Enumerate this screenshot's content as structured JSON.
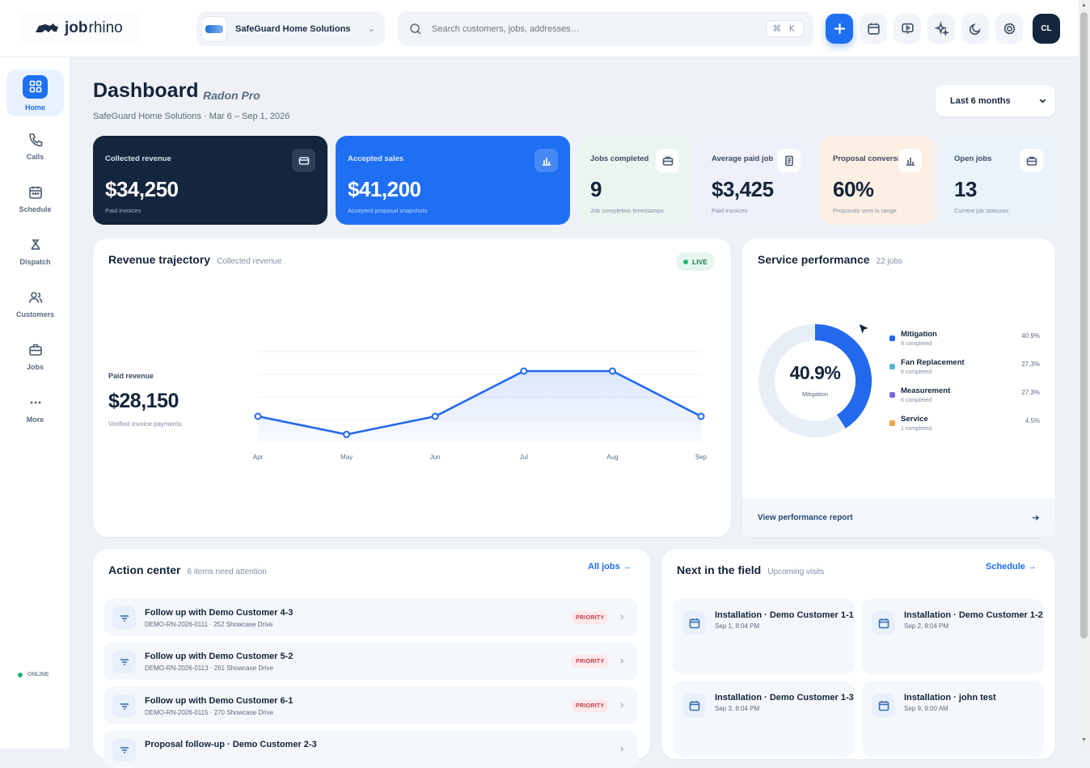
{
  "app": {
    "logo_bold": "job",
    "logo_light": "rhino"
  },
  "company_selector": {
    "name": "SafeGuard Home Solutions"
  },
  "search": {
    "placeholder": "Search customers, jobs, addresses…",
    "shortcut": "⌘ K"
  },
  "user": {
    "initials": "CL"
  },
  "sidebar": {
    "items": [
      {
        "label": "Home",
        "icon": "grid-icon"
      },
      {
        "label": "Calls",
        "icon": "phone-icon"
      },
      {
        "label": "Schedule",
        "icon": "calendar-icon"
      },
      {
        "label": "Dispatch",
        "icon": "dispatch-icon"
      },
      {
        "label": "Customers",
        "icon": "users-icon"
      },
      {
        "label": "Jobs",
        "icon": "briefcase-icon"
      },
      {
        "label": "More",
        "icon": "more-icon"
      }
    ],
    "status": "ONLINE"
  },
  "header": {
    "title": "Dashboard",
    "subtitle": "Radon Pro",
    "meta": "SafeGuard Home Solutions · Mar 6 – Sep 1, 2026",
    "range_label": "Last 6 months"
  },
  "kpis": [
    {
      "label": "Collected revenue",
      "value": "$34,250",
      "sub": "Paid invoices",
      "icon": "card-icon"
    },
    {
      "label": "Accepted sales",
      "value": "$41,200",
      "sub": "Accepted proposal snapshots",
      "icon": "bar-chart-icon"
    },
    {
      "label": "Jobs completed",
      "value": "9",
      "sub": "Job completion timestamps",
      "icon": "briefcase-icon"
    },
    {
      "label": "Average paid job",
      "value": "$3,425",
      "sub": "Paid invoices",
      "icon": "receipt-icon"
    },
    {
      "label": "Proposal conversion",
      "value": "60%",
      "sub": "Proposals sent in range",
      "icon": "bar-chart-icon"
    },
    {
      "label": "Open jobs",
      "value": "13",
      "sub": "Current job statuses",
      "icon": "briefcase-icon"
    }
  ],
  "revenue": {
    "title": "Revenue trajectory",
    "subtitle": "Collected revenue",
    "badge": "LIVE",
    "paid_label": "Paid revenue",
    "paid_value": "$28,150",
    "paid_sub": "Verified invoice payments"
  },
  "chart_data": {
    "type": "area",
    "categories": [
      "Apr",
      "May",
      "Jun",
      "Jul",
      "Aug",
      "Sep"
    ],
    "values": [
      4000,
      1200,
      4000,
      11000,
      11000,
      4000
    ],
    "ylim": [
      0,
      14000
    ],
    "grid": true
  },
  "service": {
    "title": "Service performance",
    "subtitle": "22 jobs",
    "center_value": "40.9%",
    "center_label": "Mitigation",
    "items": [
      {
        "name": "Mitigation",
        "count": "9 completed",
        "pct": "40.9%",
        "value": 40.9,
        "color": "#2369ee"
      },
      {
        "name": "Fan Replacement",
        "count": "6 completed",
        "pct": "27.3%",
        "value": 27.3,
        "color": "#5bb1d4"
      },
      {
        "name": "Measurement",
        "count": "6 completed",
        "pct": "27.3%",
        "value": 27.3,
        "color": "#7c66d9"
      },
      {
        "name": "Service",
        "count": "1 completed",
        "pct": "4.5%",
        "value": 4.5,
        "color": "#f0a24a"
      }
    ],
    "footer": "View performance report"
  },
  "action_center": {
    "title": "Action center",
    "subtitle": "6 items need attention",
    "link": "All jobs",
    "rows": [
      {
        "title": "Follow up with Demo Customer 4-3",
        "sub": "DEMO-RN-2026-0111 · 252 Showcase Drive",
        "badge": "PRIORITY"
      },
      {
        "title": "Follow up with Demo Customer 5-2",
        "sub": "DEMO-RN-2026-0113 · 261 Showcase Drive",
        "badge": "PRIORITY"
      },
      {
        "title": "Follow up with Demo Customer 6-1",
        "sub": "DEMO-RN-2026-0115 · 270 Showcase Drive",
        "badge": "PRIORITY"
      },
      {
        "title": "Proposal follow-up · Demo Customer 2-3",
        "sub": "",
        "badge": ""
      }
    ]
  },
  "next_field": {
    "title": "Next in the field",
    "subtitle": "Upcoming visits",
    "link": "Schedule",
    "visits": [
      {
        "title": "Installation · Demo Customer 1-1",
        "time": "Sep 1, 8:04 PM"
      },
      {
        "title": "Installation · Demo Customer 1-2",
        "time": "Sep 2, 8:04 PM"
      },
      {
        "title": "Installation · Demo Customer 1-3",
        "time": "Sep 3, 8:04 PM"
      },
      {
        "title": "Installation · john test",
        "time": "Sep 9, 9:00 AM"
      }
    ]
  }
}
